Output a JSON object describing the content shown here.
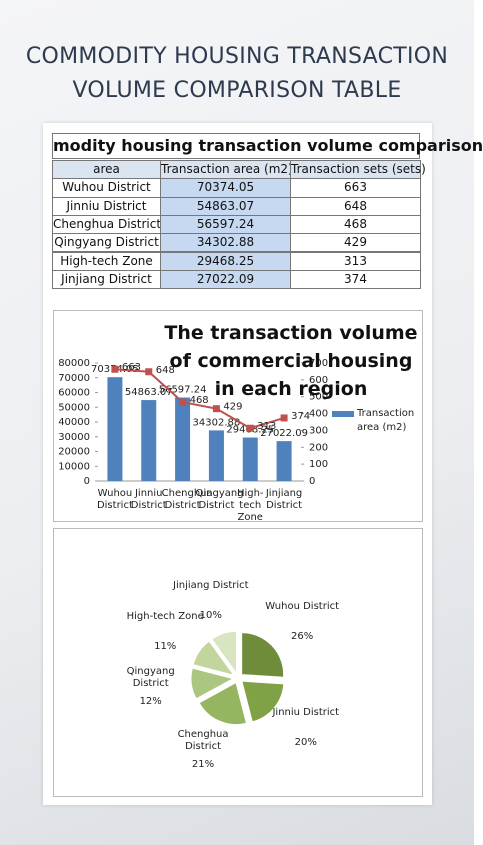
{
  "header": {
    "title_lines": [
      "COMMODITY HOUSING TRANSACTION",
      "VOLUME COMPARISON TABLE"
    ]
  },
  "table": {
    "title": "modity housing transaction volume comparison",
    "columns": [
      "area",
      "Transaction area (m2)",
      "Transaction sets (sets)"
    ],
    "rows": [
      [
        "Wuhou District",
        70374.05,
        663
      ],
      [
        "Jinniu District",
        54863.07,
        648
      ],
      [
        "Chenghua District",
        56597.24,
        468
      ],
      [
        "Qingyang District",
        34302.88,
        429
      ],
      [
        "High-tech Zone",
        29468.25,
        313
      ],
      [
        "Jinjiang District",
        27022.09,
        374
      ]
    ]
  },
  "chart_data": [
    {
      "type": "bar",
      "title": "The transaction volume of commercial housing in each region",
      "categories": [
        "Wuhou District",
        "Jinniu District",
        "Chenghua District",
        "Qingyang District",
        "High-tech Zone",
        "Jinjiang District"
      ],
      "series": [
        {
          "name": "Transaction area (m2)",
          "color": "#4f81bd",
          "type": "bar",
          "values": [
            70374.05,
            54863.07,
            56597.24,
            34302.88,
            29468.25,
            27022.09
          ]
        },
        {
          "color": "#c0504d",
          "type": "line",
          "axis": "y2",
          "values": [
            663,
            648,
            468,
            429,
            313,
            374
          ]
        }
      ],
      "ylim": [
        0,
        80000
      ],
      "yticks": [
        0,
        10000,
        20000,
        30000,
        40000,
        50000,
        60000,
        70000,
        80000
      ],
      "y2lim": [
        0,
        700
      ],
      "y2ticks": [
        0,
        100,
        200,
        300,
        400,
        500,
        600,
        700
      ],
      "legend": "right",
      "grid": false
    },
    {
      "type": "pie",
      "categories": [
        "Wuhou District",
        "Jinniu District",
        "Chenghua District",
        "Qingyang District",
        "High-tech Zone",
        "Jinjiang District"
      ],
      "values": [
        26,
        20,
        21,
        12,
        11,
        10
      ],
      "value_labels": [
        "26%",
        "20%",
        "21%",
        "12%",
        "11%",
        "10%"
      ],
      "colors": [
        "#6f8c3a",
        "#80a145",
        "#95b560",
        "#aac681",
        "#c1d59c",
        "#d8e5c0"
      ]
    }
  ]
}
